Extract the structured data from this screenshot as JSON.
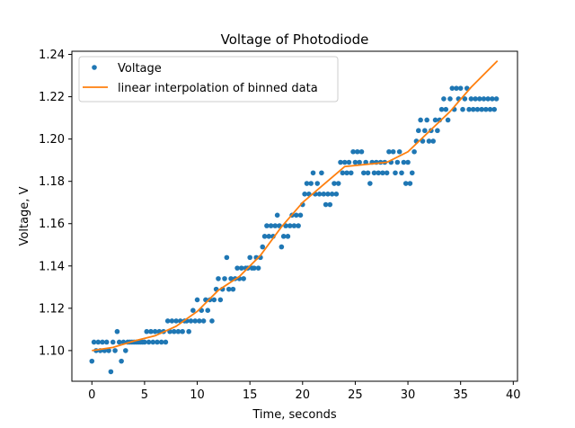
{
  "chart_data": {
    "type": "scatter",
    "title": "Voltage of Photodiode",
    "xlabel": "Time, seconds",
    "ylabel": "Voltage, V",
    "xlim": [
      -1.9,
      40.4
    ],
    "ylim": [
      1.0855,
      1.2415
    ],
    "xticks": [
      0,
      5,
      10,
      15,
      20,
      25,
      30,
      35,
      40
    ],
    "yticks": [
      1.1,
      1.12,
      1.14,
      1.16,
      1.18,
      1.2,
      1.22,
      1.24
    ],
    "grid": false,
    "legend_position": "upper left",
    "series": [
      {
        "name": "Voltage",
        "kind": "scatter",
        "color": "#1f77b4",
        "points": [
          [
            0.0,
            1.095
          ],
          [
            0.2,
            1.104
          ],
          [
            0.4,
            1.1
          ],
          [
            0.6,
            1.104
          ],
          [
            0.8,
            1.1
          ],
          [
            1.0,
            1.104
          ],
          [
            1.2,
            1.1
          ],
          [
            1.4,
            1.104
          ],
          [
            1.6,
            1.1
          ],
          [
            1.8,
            1.09
          ],
          [
            2.0,
            1.104
          ],
          [
            2.2,
            1.1
          ],
          [
            2.4,
            1.109
          ],
          [
            2.6,
            1.104
          ],
          [
            2.8,
            1.095
          ],
          [
            3.0,
            1.104
          ],
          [
            3.2,
            1.1
          ],
          [
            3.4,
            1.104
          ],
          [
            3.6,
            1.104
          ],
          [
            3.8,
            1.104
          ],
          [
            4.0,
            1.104
          ],
          [
            4.2,
            1.104
          ],
          [
            4.4,
            1.104
          ],
          [
            4.6,
            1.104
          ],
          [
            4.8,
            1.104
          ],
          [
            5.0,
            1.104
          ],
          [
            5.2,
            1.109
          ],
          [
            5.4,
            1.104
          ],
          [
            5.6,
            1.109
          ],
          [
            5.8,
            1.104
          ],
          [
            6.0,
            1.109
          ],
          [
            6.2,
            1.104
          ],
          [
            6.4,
            1.109
          ],
          [
            6.6,
            1.104
          ],
          [
            6.8,
            1.109
          ],
          [
            7.0,
            1.104
          ],
          [
            7.2,
            1.114
          ],
          [
            7.4,
            1.109
          ],
          [
            7.6,
            1.114
          ],
          [
            7.8,
            1.109
          ],
          [
            8.0,
            1.114
          ],
          [
            8.2,
            1.109
          ],
          [
            8.4,
            1.114
          ],
          [
            8.6,
            1.109
          ],
          [
            8.8,
            1.114
          ],
          [
            9.0,
            1.114
          ],
          [
            9.2,
            1.109
          ],
          [
            9.4,
            1.114
          ],
          [
            9.6,
            1.119
          ],
          [
            9.8,
            1.114
          ],
          [
            10.0,
            1.124
          ],
          [
            10.2,
            1.114
          ],
          [
            10.4,
            1.119
          ],
          [
            10.6,
            1.114
          ],
          [
            10.8,
            1.124
          ],
          [
            11.0,
            1.119
          ],
          [
            11.2,
            1.124
          ],
          [
            11.4,
            1.114
          ],
          [
            11.6,
            1.124
          ],
          [
            11.8,
            1.129
          ],
          [
            12.0,
            1.134
          ],
          [
            12.2,
            1.124
          ],
          [
            12.4,
            1.129
          ],
          [
            12.6,
            1.134
          ],
          [
            12.8,
            1.144
          ],
          [
            13.0,
            1.129
          ],
          [
            13.2,
            1.134
          ],
          [
            13.4,
            1.129
          ],
          [
            13.6,
            1.134
          ],
          [
            13.8,
            1.139
          ],
          [
            14.0,
            1.134
          ],
          [
            14.2,
            1.139
          ],
          [
            14.4,
            1.134
          ],
          [
            14.6,
            1.139
          ],
          [
            14.8,
            1.139
          ],
          [
            15.0,
            1.144
          ],
          [
            15.2,
            1.139
          ],
          [
            15.4,
            1.139
          ],
          [
            15.6,
            1.144
          ],
          [
            15.8,
            1.139
          ],
          [
            16.0,
            1.144
          ],
          [
            16.2,
            1.149
          ],
          [
            16.4,
            1.154
          ],
          [
            16.6,
            1.159
          ],
          [
            16.8,
            1.154
          ],
          [
            17.0,
            1.159
          ],
          [
            17.2,
            1.154
          ],
          [
            17.4,
            1.159
          ],
          [
            17.6,
            1.164
          ],
          [
            17.8,
            1.159
          ],
          [
            18.0,
            1.149
          ],
          [
            18.2,
            1.154
          ],
          [
            18.4,
            1.159
          ],
          [
            18.6,
            1.154
          ],
          [
            18.8,
            1.159
          ],
          [
            19.0,
            1.164
          ],
          [
            19.2,
            1.159
          ],
          [
            19.4,
            1.164
          ],
          [
            19.6,
            1.159
          ],
          [
            19.8,
            1.164
          ],
          [
            20.0,
            1.169
          ],
          [
            20.2,
            1.174
          ],
          [
            20.4,
            1.179
          ],
          [
            20.6,
            1.174
          ],
          [
            20.8,
            1.179
          ],
          [
            21.0,
            1.184
          ],
          [
            21.2,
            1.174
          ],
          [
            21.4,
            1.179
          ],
          [
            21.6,
            1.174
          ],
          [
            21.8,
            1.184
          ],
          [
            22.0,
            1.174
          ],
          [
            22.2,
            1.169
          ],
          [
            22.4,
            1.174
          ],
          [
            22.6,
            1.169
          ],
          [
            22.8,
            1.174
          ],
          [
            23.0,
            1.179
          ],
          [
            23.2,
            1.174
          ],
          [
            23.4,
            1.179
          ],
          [
            23.6,
            1.189
          ],
          [
            23.8,
            1.184
          ],
          [
            24.0,
            1.189
          ],
          [
            24.2,
            1.184
          ],
          [
            24.4,
            1.189
          ],
          [
            24.6,
            1.184
          ],
          [
            24.8,
            1.194
          ],
          [
            25.0,
            1.189
          ],
          [
            25.2,
            1.194
          ],
          [
            25.4,
            1.189
          ],
          [
            25.6,
            1.194
          ],
          [
            25.8,
            1.184
          ],
          [
            26.0,
            1.189
          ],
          [
            26.2,
            1.184
          ],
          [
            26.4,
            1.179
          ],
          [
            26.6,
            1.189
          ],
          [
            26.8,
            1.184
          ],
          [
            27.0,
            1.189
          ],
          [
            27.2,
            1.184
          ],
          [
            27.4,
            1.189
          ],
          [
            27.6,
            1.184
          ],
          [
            27.8,
            1.189
          ],
          [
            28.0,
            1.184
          ],
          [
            28.2,
            1.194
          ],
          [
            28.4,
            1.189
          ],
          [
            28.6,
            1.194
          ],
          [
            28.8,
            1.184
          ],
          [
            29.0,
            1.189
          ],
          [
            29.2,
            1.194
          ],
          [
            29.4,
            1.184
          ],
          [
            29.6,
            1.189
          ],
          [
            29.8,
            1.179
          ],
          [
            30.0,
            1.189
          ],
          [
            30.2,
            1.179
          ],
          [
            30.4,
            1.184
          ],
          [
            30.6,
            1.194
          ],
          [
            30.8,
            1.199
          ],
          [
            31.0,
            1.204
          ],
          [
            31.2,
            1.209
          ],
          [
            31.4,
            1.199
          ],
          [
            31.6,
            1.204
          ],
          [
            31.8,
            1.209
          ],
          [
            32.0,
            1.199
          ],
          [
            32.2,
            1.204
          ],
          [
            32.4,
            1.199
          ],
          [
            32.6,
            1.209
          ],
          [
            32.8,
            1.204
          ],
          [
            33.0,
            1.209
          ],
          [
            33.2,
            1.214
          ],
          [
            33.4,
            1.219
          ],
          [
            33.6,
            1.214
          ],
          [
            33.8,
            1.209
          ],
          [
            34.0,
            1.219
          ],
          [
            34.2,
            1.224
          ],
          [
            34.4,
            1.214
          ],
          [
            34.6,
            1.224
          ],
          [
            34.8,
            1.219
          ],
          [
            35.0,
            1.224
          ],
          [
            35.2,
            1.214
          ],
          [
            35.4,
            1.219
          ],
          [
            35.6,
            1.224
          ],
          [
            35.8,
            1.214
          ],
          [
            36.0,
            1.219
          ],
          [
            36.2,
            1.214
          ],
          [
            36.4,
            1.219
          ],
          [
            36.6,
            1.214
          ],
          [
            36.8,
            1.219
          ],
          [
            37.0,
            1.214
          ],
          [
            37.2,
            1.219
          ],
          [
            37.4,
            1.214
          ],
          [
            37.6,
            1.219
          ],
          [
            37.8,
            1.214
          ],
          [
            38.0,
            1.219
          ],
          [
            38.2,
            1.214
          ],
          [
            38.4,
            1.219
          ]
        ]
      },
      {
        "name": "linear interpolation of binned data",
        "kind": "line",
        "color": "#ff7f0e",
        "points": [
          [
            0,
            1.1
          ],
          [
            2,
            1.1015
          ],
          [
            4,
            1.1045
          ],
          [
            6,
            1.107
          ],
          [
            8,
            1.1115
          ],
          [
            10,
            1.1185
          ],
          [
            12,
            1.1285
          ],
          [
            14,
            1.135
          ],
          [
            16,
            1.145
          ],
          [
            18,
            1.1585
          ],
          [
            20,
            1.17
          ],
          [
            22,
            1.1785
          ],
          [
            24,
            1.187
          ],
          [
            26,
            1.188
          ],
          [
            28,
            1.189
          ],
          [
            30,
            1.194
          ],
          [
            32,
            1.2035
          ],
          [
            34,
            1.213
          ],
          [
            36,
            1.2245
          ],
          [
            38.5,
            1.237
          ]
        ]
      }
    ]
  }
}
